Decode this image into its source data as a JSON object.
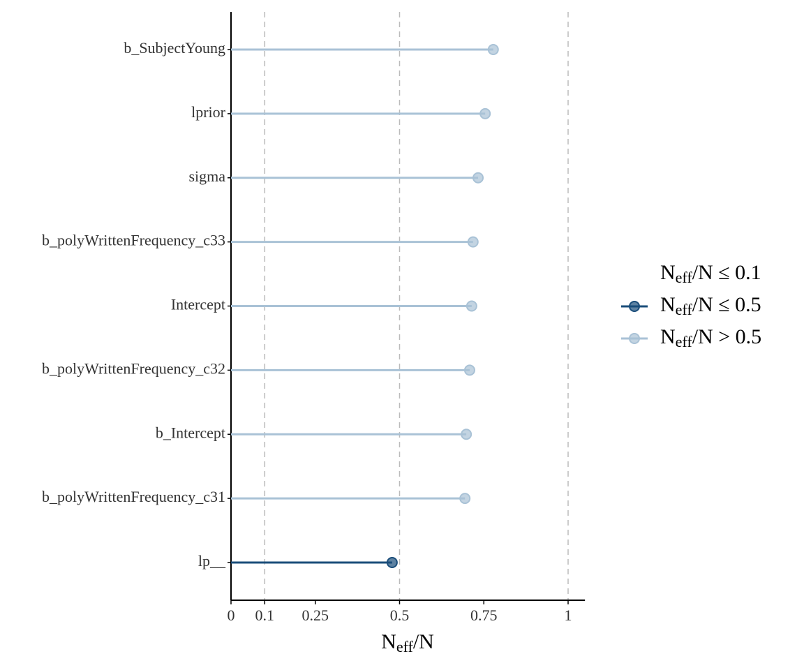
{
  "chart_data": {
    "type": "lollipop",
    "categories": [
      "b_SubjectYoung",
      "lprior",
      "sigma",
      "b_polyWrittenFrequency_c33",
      "Intercept",
      "b_polyWrittenFrequency_c32",
      "b_Intercept",
      "b_polyWrittenFrequency_c31",
      "lp__"
    ],
    "series": [
      {
        "name": "Neff/N ≤ 0.1",
        "color": "#011f4b",
        "values": [
          null,
          null,
          null,
          null,
          null,
          null,
          null,
          null,
          null
        ]
      },
      {
        "name": "Neff/N ≤ 0.5",
        "color": "#1a4d7a",
        "values": [
          null,
          null,
          null,
          null,
          null,
          null,
          null,
          null,
          0.478
        ]
      },
      {
        "name": "Neff/N > 0.5",
        "color": "#a9c2d6",
        "values": [
          0.778,
          0.754,
          0.733,
          0.718,
          0.714,
          0.708,
          0.698,
          0.694,
          null
        ]
      }
    ],
    "x_label": "Neff/N",
    "xlim": [
      0,
      1.05
    ],
    "xticks": [
      0,
      0.1,
      0.25,
      0.5,
      0.75,
      1
    ],
    "vlines": [
      0.1,
      0.5,
      1
    ]
  }
}
